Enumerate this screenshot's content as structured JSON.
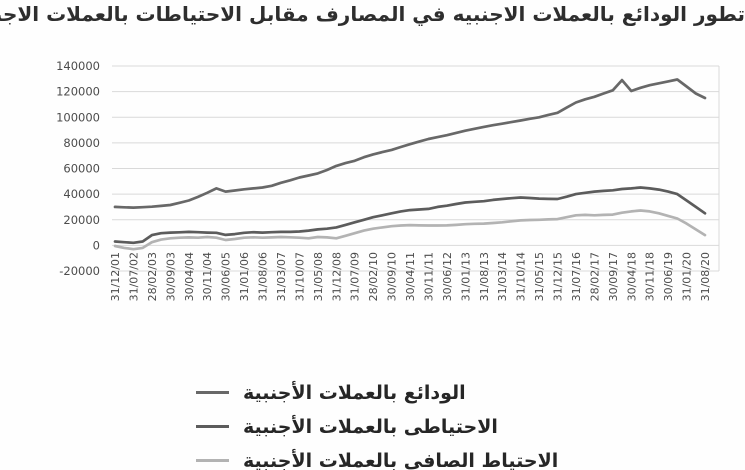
{
  "title_note": "line chart of foreign currency deposits vs central bank FX reserves, Lebanon",
  "chart_data": {
    "type": "line",
    "title": "تطور الودائع بالعملات الاجنبيه في المصارف مقابل الاحتياطات بالعملات الاجنبيه في مصرف لبنان",
    "grid": true,
    "legend_position": "bottom",
    "background": "#fefefe",
    "gridline_color": "#d9d9d9",
    "tick_color": "#4c4c4c",
    "y_axis": {
      "min": -20000,
      "max": 140000,
      "step": 20000,
      "tick_labels": [
        "140000",
        "120000",
        "100000",
        "80000",
        "60000",
        "40000",
        "20000",
        "0",
        "-20000"
      ]
    },
    "categories": [
      "31/12/01",
      "31/07/02",
      "28/02/03",
      "30/09/03",
      "30/04/04",
      "30/11/04",
      "30/06/05",
      "31/01/06",
      "31/08/06",
      "31/03/07",
      "31/10/07",
      "31/05/08",
      "31/12/08",
      "31/07/09",
      "28/02/10",
      "30/09/10",
      "30/04/11",
      "30/11/11",
      "30/06/12",
      "31/01/13",
      "31/08/13",
      "31/03/14",
      "31/10/14",
      "31/05/15",
      "31/12/15",
      "31/07/16",
      "28/02/17",
      "30/09/17",
      "30/04/18",
      "30/11/18",
      "30/06/19",
      "31/01/20",
      "31/08/20"
    ],
    "points_per_label_interval": 2,
    "series": [
      {
        "name": "الودائع بالعملات الأجنبية",
        "color": "#686868",
        "width": 2.7,
        "values": [
          30000,
          29700,
          29500,
          29800,
          30200,
          30800,
          31500,
          33200,
          35000,
          37800,
          41000,
          44500,
          42000,
          42800,
          43800,
          44500,
          45200,
          46500,
          48800,
          50800,
          53000,
          54500,
          56200,
          58800,
          62000,
          64200,
          66000,
          68800,
          71000,
          72800,
          74500,
          76800,
          79000,
          81000,
          83000,
          84500,
          86000,
          87800,
          89500,
          91000,
          92500,
          93800,
          95000,
          96200,
          97500,
          98800,
          100000,
          101800,
          103500,
          107500,
          111500,
          114000,
          116000,
          118500,
          121000,
          129000,
          120500,
          123000,
          125000,
          126500,
          128000,
          129500,
          124000,
          118500,
          115000
        ]
      },
      {
        "name": "الاحتياطى بالعملات الأجنبية",
        "color": "#5c5c5c",
        "width": 2.7,
        "values": [
          3000,
          2500,
          2000,
          3000,
          8000,
          9500,
          10000,
          10200,
          10500,
          10300,
          10000,
          9800,
          8200,
          8800,
          9800,
          10300,
          10000,
          10300,
          10500,
          10500,
          10800,
          11500,
          12500,
          13000,
          14000,
          16000,
          18000,
          20000,
          22000,
          23500,
          25000,
          26500,
          27500,
          28000,
          28500,
          30000,
          31000,
          32300,
          33500,
          34000,
          34500,
          35500,
          36200,
          36800,
          37400,
          37000,
          36500,
          36300,
          36200,
          38000,
          40000,
          41000,
          42000,
          42500,
          43000,
          44000,
          44500,
          45200,
          44500,
          43500,
          42000,
          40000,
          35000,
          30000,
          25000
        ]
      },
      {
        "name": "الاحتياط الصافي بالعملات الأجنبية",
        "color": "#b3b3b3",
        "width": 2.7,
        "values": [
          -500,
          -2000,
          -3000,
          -2000,
          2500,
          4500,
          5500,
          6000,
          6200,
          6000,
          6500,
          6000,
          4200,
          5000,
          6000,
          6300,
          6000,
          6200,
          6500,
          6300,
          6000,
          5500,
          6500,
          6200,
          5500,
          7500,
          9500,
          11500,
          13000,
          14000,
          15000,
          15500,
          15800,
          15600,
          15500,
          15500,
          15600,
          16000,
          16500,
          16800,
          17000,
          17500,
          18000,
          18800,
          19500,
          19800,
          20000,
          20300,
          20500,
          22000,
          23500,
          23800,
          23500,
          23800,
          24000,
          25500,
          26500,
          27200,
          26500,
          25000,
          23000,
          21000,
          17000,
          12500,
          8000
        ]
      }
    ]
  }
}
